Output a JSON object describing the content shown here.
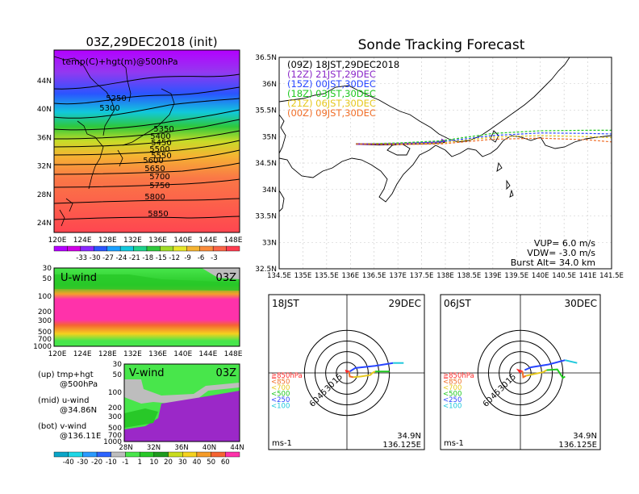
{
  "colors": {
    "temp_scale": [
      "#b400ff",
      "#d100e6",
      "#8a28ff",
      "#2a55ff",
      "#1aa0ff",
      "#11c8dc",
      "#1ed28c",
      "#2ec83c",
      "#a0dc28",
      "#e6e628",
      "#f5b432",
      "#fa8c3c",
      "#fa6446",
      "#ff3c50"
    ],
    "wind_scale": [
      "#0aa5c8",
      "#1ed7e6",
      "#2a9bff",
      "#2d64ff",
      "#bdbdbd",
      "#48e64b",
      "#28c828",
      "#1e9b1e",
      "#c8dc1e",
      "#f5d21e",
      "#f59b28",
      "#f56432",
      "#ff32aa"
    ],
    "run_09": "#000000",
    "run_12": "#8a28c8",
    "run_15": "#2846ff",
    "run_18": "#1ec81e",
    "run_21": "#e6c81e",
    "run_00": "#f06e28"
  },
  "map_panel": {
    "title": "03Z,29DEC2018 (init)",
    "subtitle": "temp(C)+hgt(m)@500hPa",
    "lon_labels": [
      "120E",
      "124E",
      "128E",
      "132E",
      "136E",
      "140E",
      "144E",
      "148E"
    ],
    "lat_labels": [
      "44N",
      "40N",
      "36N",
      "32N",
      "28N",
      "24N"
    ],
    "contour_labels": [
      "5250",
      "5300",
      "5350",
      "5400",
      "5450",
      "5500",
      "5550",
      "5600",
      "5650",
      "5700",
      "5750",
      "5800",
      "5850"
    ],
    "colorbar_labels": [
      "-33",
      "-30",
      "-27",
      "-24",
      "-21",
      "-18",
      "-15",
      "-12",
      "-9",
      "-6",
      "-3"
    ]
  },
  "u_panel": {
    "title": "U-wind",
    "time": "03Z",
    "p_labels": [
      "30",
      "50",
      "100",
      "200",
      "300",
      "500",
      "700",
      "1000"
    ],
    "lon_labels": [
      "120E",
      "124E",
      "128E",
      "132E",
      "136E",
      "140E",
      "144E",
      "148E"
    ]
  },
  "v_panel": {
    "title": "V-wind",
    "time": "03Z",
    "p_labels": [
      "30",
      "50",
      "100",
      "200",
      "300",
      "500",
      "700",
      "1000"
    ],
    "lat_labels": [
      "28N",
      "32N",
      "36N",
      "40N",
      "44N"
    ],
    "colorbar_labels": [
      "-40",
      "-30",
      "-20",
      "-10",
      "-1",
      "1",
      "10",
      "20",
      "30",
      "40",
      "50",
      "60"
    ]
  },
  "captions": {
    "up_line1": "(up)  tmp+hgt",
    "up_line2": "@500hPa",
    "mid_line1": "(mid)  u-wind",
    "mid_line2": "@34.86N",
    "bot_line1": "(bot)  v-wind",
    "bot_line2": "@136.11E"
  },
  "track_panel": {
    "title": "Sonde Tracking Forecast",
    "x_labels": [
      "134.5E",
      "135E",
      "135.5E",
      "136E",
      "136.5E",
      "137E",
      "137.5E",
      "138E",
      "138.5E",
      "139E",
      "139.5E",
      "140E",
      "140.5E",
      "141E",
      "141.5E"
    ],
    "y_labels": [
      "36.5N",
      "36N",
      "35.5N",
      "35N",
      "34.5N",
      "34N",
      "33.5N",
      "33N",
      "32.5N"
    ],
    "legend": [
      {
        "text": "(09Z)  18JST,29DEC2018"
      },
      {
        "text": "(12Z)  21JST,29DEC"
      },
      {
        "text": "(15Z)  00JST,30DEC"
      },
      {
        "text": "(18Z)  03JST,30DEC"
      },
      {
        "text": "(21Z)  06JST,30DEC"
      },
      {
        "text": "(00Z)  09JST,30DEC"
      }
    ],
    "vup": "VUP=   6.0  m/s",
    "vdw": "VDW=  -3.0  m/s",
    "burst": "Burst Alt=  34.0  km"
  },
  "hodo_left": {
    "time": "18JST",
    "date": "29DEC",
    "ring_labels": [
      "15",
      "30",
      "45",
      "60"
    ],
    "levels": [
      "≧850hPa",
      "<850",
      "<700",
      "<500",
      "<250",
      "<100"
    ],
    "lat": "34.9N",
    "lon": "136.125E",
    "unit": "ms-1"
  },
  "hodo_right": {
    "time": "06JST",
    "date": "30DEC",
    "ring_labels": [
      "15",
      "30",
      "45",
      "60"
    ],
    "levels": [
      "≧850hPa",
      "<850",
      "<700",
      "<500",
      "<250",
      "<100"
    ],
    "lat": "34.9N",
    "lon": "136.125E",
    "unit": "ms-1"
  },
  "chart_data": [
    {
      "type": "heatmap",
      "title": "03Z,29DEC2018 (init)",
      "subtitle": "temp(C)+hgt(m)@500hPa",
      "xlim": [
        "120E",
        "148E"
      ],
      "ylim": [
        "22N",
        "47N"
      ],
      "contours_m": [
        5250,
        5300,
        5350,
        5400,
        5450,
        5500,
        5550,
        5600,
        5650,
        5700,
        5750,
        5800,
        5850
      ],
      "colorbar_c": [
        -33,
        -30,
        -27,
        -24,
        -21,
        -18,
        -15,
        -12,
        -9,
        -6,
        -3
      ]
    },
    {
      "type": "heatmap",
      "title": "U-wind",
      "time": "03Z",
      "pressure_levels": [
        30,
        50,
        100,
        200,
        300,
        500,
        700,
        1000
      ],
      "xlim": [
        "120E",
        "148E"
      ]
    },
    {
      "type": "heatmap",
      "title": "V-wind",
      "time": "03Z",
      "pressure_levels": [
        30,
        50,
        100,
        200,
        300,
        500,
        700,
        1000
      ],
      "xlim": [
        "28N",
        "44N"
      ],
      "colorbar_ms": [
        -40,
        -30,
        -20,
        -10,
        -1,
        1,
        10,
        20,
        30,
        40,
        50,
        60
      ]
    },
    {
      "type": "line",
      "title": "Sonde Tracking Forecast",
      "xlim": [
        134.5,
        141.5
      ],
      "ylim": [
        32.5,
        36.5
      ],
      "launch": [
        136.12,
        34.86
      ],
      "series": [
        {
          "name": "(09Z)  18JST,29DEC2018",
          "x": [
            136.12,
            136.6,
            137.2,
            137.8,
            138.0
          ],
          "y": [
            34.86,
            34.85,
            34.86,
            34.88,
            34.9
          ]
        },
        {
          "name": "(12Z)  21JST,29DEC",
          "x": [
            136.12,
            136.6,
            137.2,
            137.8,
            138.0
          ],
          "y": [
            34.86,
            34.86,
            34.87,
            34.89,
            34.92
          ]
        },
        {
          "name": "(15Z)  00JST,30DEC",
          "x": [
            136.12,
            137.0,
            137.9,
            139.0,
            140.0,
            141.0,
            141.5
          ],
          "y": [
            34.86,
            34.87,
            34.9,
            35.02,
            35.07,
            35.06,
            35.05
          ]
        },
        {
          "name": "(18Z)  03JST,30DEC",
          "x": [
            136.12,
            137.0,
            137.9,
            139.0,
            140.0,
            141.0,
            141.5
          ],
          "y": [
            34.86,
            34.88,
            34.92,
            35.06,
            35.11,
            35.12,
            35.12
          ]
        },
        {
          "name": "(21Z)  06JST,30DEC",
          "x": [
            136.12,
            137.0,
            137.9,
            139.0,
            140.0,
            141.0,
            141.5
          ],
          "y": [
            34.86,
            34.86,
            34.88,
            34.99,
            35.02,
            35.0,
            34.98
          ]
        },
        {
          "name": "(00Z)  09JST,30DEC",
          "x": [
            136.12,
            137.0,
            137.9,
            139.0,
            140.0,
            141.0,
            141.5
          ],
          "y": [
            34.86,
            34.85,
            34.86,
            34.95,
            34.97,
            34.94,
            34.9
          ]
        }
      ]
    },
    {
      "type": "line",
      "title": "18JST 29DEC hodograph",
      "ring_values": [
        15,
        30,
        45,
        60
      ],
      "series": [
        {
          "name": "≧850hPa",
          "u": [
            0,
            -1,
            3
          ],
          "v": [
            0,
            3,
            2
          ]
        },
        {
          "name": "<850",
          "u": [
            3,
            4,
            9
          ],
          "v": [
            2,
            -5,
            -6
          ]
        },
        {
          "name": "<700",
          "u": [
            9,
            20,
            33,
            36,
            40
          ],
          "v": [
            -6,
            -5,
            -3,
            0,
            2
          ]
        },
        {
          "name": "<500",
          "u": [
            40,
            50,
            60
          ],
          "v": [
            2,
            2,
            2
          ]
        },
        {
          "name": "<250",
          "u": [
            4,
            12,
            40,
            65
          ],
          "v": [
            2,
            7,
            10,
            14
          ]
        },
        {
          "name": "<100",
          "u": [
            65,
            80
          ],
          "v": [
            14,
            14
          ]
        }
      ]
    },
    {
      "type": "line",
      "title": "06JST 30DEC hodograph",
      "ring_values": [
        15,
        30,
        45,
        60
      ],
      "series": [
        {
          "name": "≧850hPa",
          "u": [
            0,
            -3,
            3
          ],
          "v": [
            0,
            4,
            2
          ]
        },
        {
          "name": "<850",
          "u": [
            3,
            4,
            8
          ],
          "v": [
            2,
            -6,
            -4
          ]
        },
        {
          "name": "<700",
          "u": [
            8,
            22,
            32,
            37
          ],
          "v": [
            -4,
            -1,
            1,
            4
          ]
        },
        {
          "name": "<500",
          "u": [
            37,
            52,
            60,
            63
          ],
          "v": [
            4,
            5,
            -7,
            -5
          ]
        },
        {
          "name": "<250",
          "u": [
            6,
            15,
            40,
            63
          ],
          "v": [
            4,
            8,
            12,
            18
          ]
        },
        {
          "name": "<100",
          "u": [
            63,
            80
          ],
          "v": [
            18,
            14
          ]
        }
      ]
    }
  ]
}
